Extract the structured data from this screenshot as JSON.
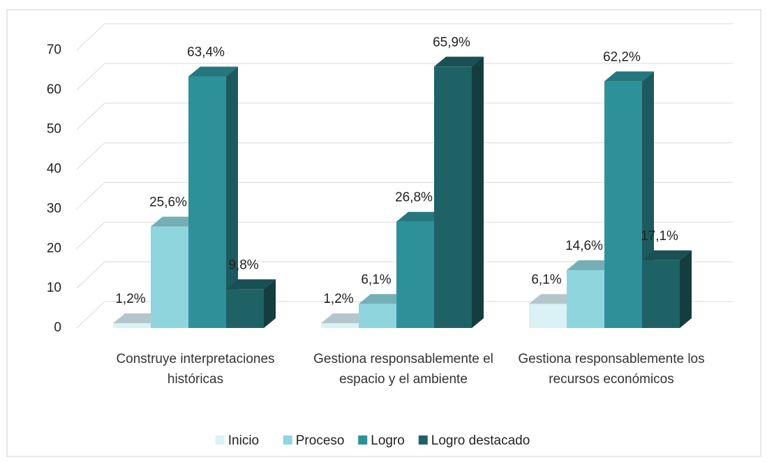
{
  "chart_data": {
    "type": "bar3d",
    "categories": [
      "Construye interpretaciones históricas",
      "Gestiona responsablemente el espacio y el ambiente",
      "Gestiona responsablemente los recursos económicos"
    ],
    "series": [
      {
        "name": "Inicio",
        "color": "#daf1f5",
        "values": [
          1.2,
          1.2,
          6.1
        ],
        "value_labels": [
          "1,2%",
          "1,2%",
          "6,1%"
        ]
      },
      {
        "name": "Proceso",
        "color": "#8fd5dd",
        "values": [
          25.6,
          6.1,
          14.6
        ],
        "value_labels": [
          "25,6%",
          "6,1%",
          "14,6%"
        ]
      },
      {
        "name": "Logro",
        "color": "#2e9199",
        "values": [
          63.4,
          26.8,
          62.2
        ],
        "value_labels": [
          "63,4%",
          "26,8%",
          "62,2%"
        ]
      },
      {
        "name": "Logro destacado",
        "color": "#1f6266",
        "values": [
          9.8,
          65.9,
          17.1
        ],
        "value_labels": [
          "9,8%",
          "65,9%",
          "17,1%"
        ]
      }
    ],
    "ylim": [
      0,
      70
    ],
    "yticks": [
      0,
      10,
      20,
      30,
      40,
      50,
      60,
      70
    ],
    "grid": true,
    "legend": "bottom"
  }
}
